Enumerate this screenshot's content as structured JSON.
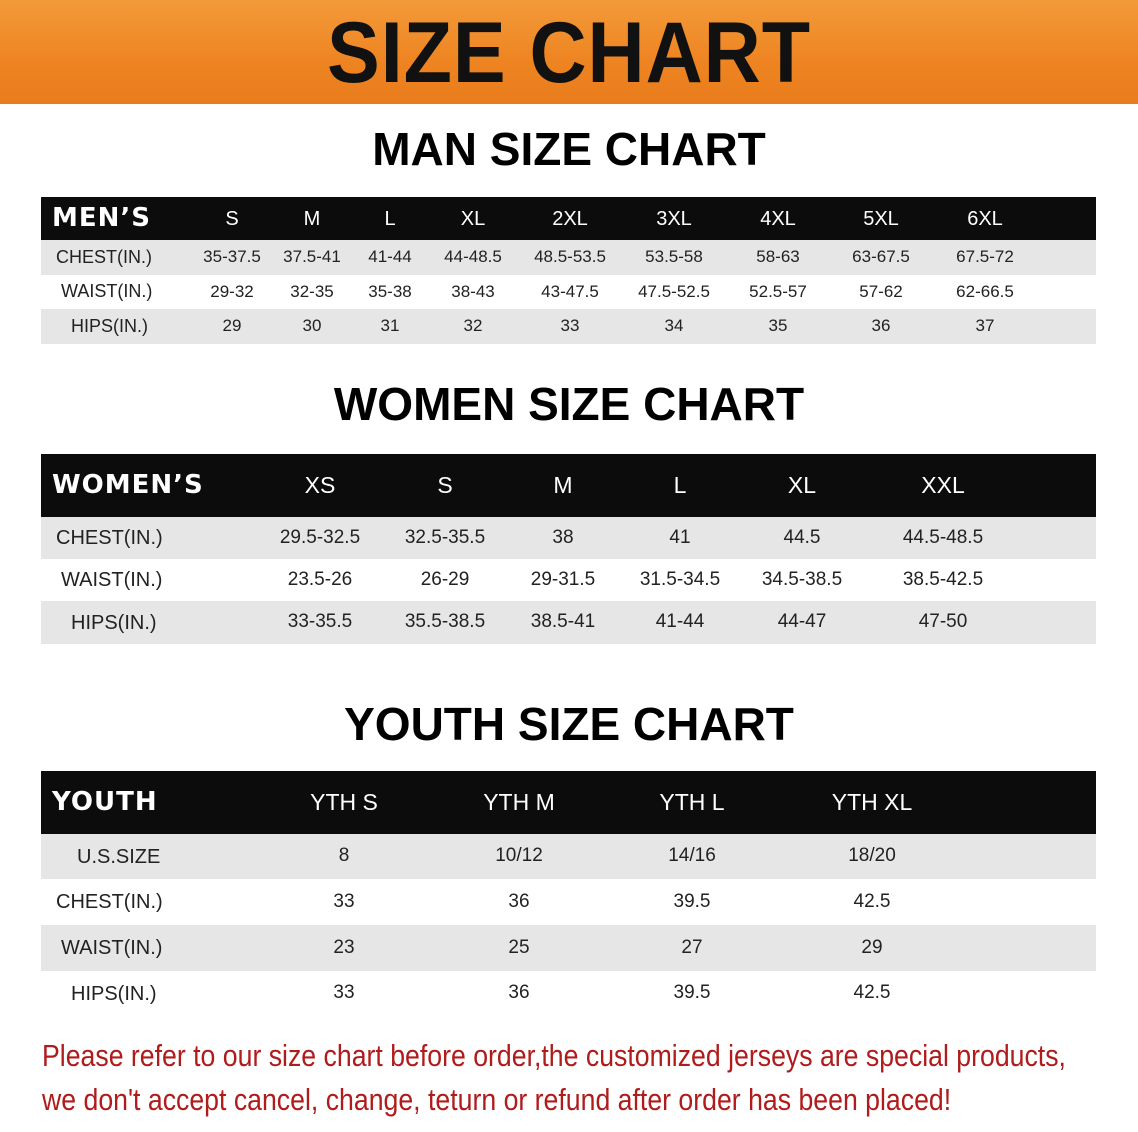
{
  "title": "SIZE CHART",
  "colors": {
    "banner": "#ee8421",
    "header_row": "#0c0c0c",
    "stripe": "#e6e6e6",
    "note": "#b01c1c"
  },
  "tables": [
    {
      "title": "MAN SIZE CHART",
      "header_label": "MEN’S",
      "columns": [
        "S",
        "M",
        "L",
        "XL",
        "2XL",
        "3XL",
        "4XL",
        "5XL",
        "6XL"
      ],
      "rows": [
        {
          "label": "CHEST(IN.)",
          "values": [
            "35-37.5",
            "37.5-41",
            "41-44",
            "44-48.5",
            "48.5-53.5",
            "53.5-58",
            "58-63",
            "63-67.5",
            "67.5-72"
          ]
        },
        {
          "label": "WAIST(IN.)",
          "values": [
            "29-32",
            "32-35",
            "35-38",
            "38-43",
            "43-47.5",
            "47.5-52.5",
            "52.5-57",
            "57-62",
            "62-66.5"
          ]
        },
        {
          "label": "HIPS(IN.)",
          "values": [
            "29",
            "30",
            "31",
            "32",
            "33",
            "34",
            "35",
            "36",
            "37"
          ]
        }
      ]
    },
    {
      "title": "WOMEN SIZE CHART",
      "header_label": "WOMEN’S",
      "columns": [
        "XS",
        "S",
        "M",
        "L",
        "XL",
        "XXL"
      ],
      "rows": [
        {
          "label": "CHEST(IN.)",
          "values": [
            "29.5-32.5",
            "32.5-35.5",
            "38",
            "41",
            "44.5",
            "44.5-48.5"
          ]
        },
        {
          "label": "WAIST(IN.)",
          "values": [
            "23.5-26",
            "26-29",
            "29-31.5",
            "31.5-34.5",
            "34.5-38.5",
            "38.5-42.5"
          ]
        },
        {
          "label": "HIPS(IN.)",
          "values": [
            "33-35.5",
            "35.5-38.5",
            "38.5-41",
            "41-44",
            "44-47",
            "47-50"
          ]
        }
      ]
    },
    {
      "title": "YOUTH SIZE CHART",
      "header_label": "YOUTH",
      "columns": [
        "YTH S",
        "YTH M",
        "YTH L",
        "YTH XL"
      ],
      "rows": [
        {
          "label": "U.S.SIZE",
          "values": [
            "8",
            "10/12",
            "14/16",
            "18/20"
          ]
        },
        {
          "label": "CHEST(IN.)",
          "values": [
            "33",
            "36",
            "39.5",
            "42.5"
          ]
        },
        {
          "label": "WAIST(IN.)",
          "values": [
            "23",
            "25",
            "27",
            "29"
          ]
        },
        {
          "label": "HIPS(IN.)",
          "values": [
            "33",
            "36",
            "39.5",
            "42.5"
          ]
        }
      ]
    }
  ],
  "note": {
    "line1": "Please refer to our size chart before order,the customized jerseys are special products,",
    "line2": "we don't accept cancel, change, teturn or refund after order has been placed!"
  }
}
